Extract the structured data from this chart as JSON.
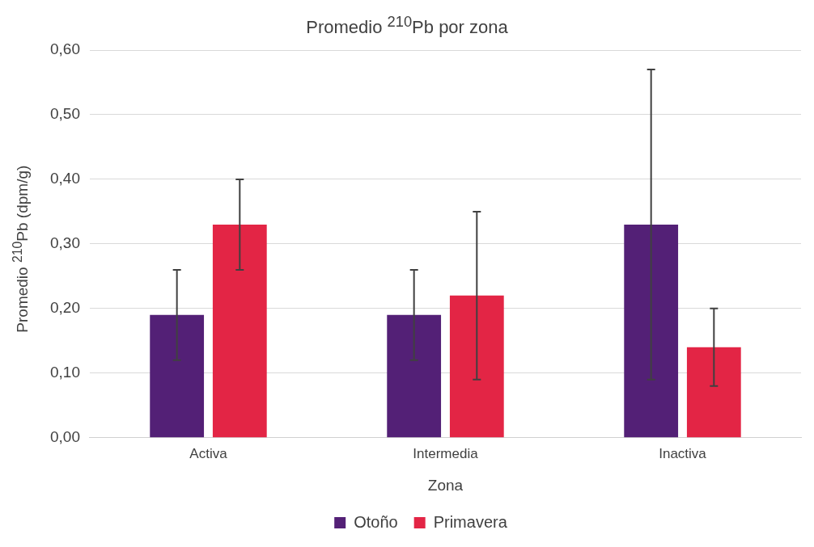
{
  "chart_data": {
    "type": "bar",
    "title": "Promedio $^{210}$Pb   por zona",
    "xlabel": "Zona",
    "ylabel": "Promedio $^{210}$Pb (dpm/g)",
    "categories": [
      "Activa",
      "Intermedia",
      "Inactiva"
    ],
    "series": [
      {
        "name": "Otoño",
        "color": "#532076",
        "values": [
          0.19,
          0.19,
          0.33
        ],
        "errors": [
          [
            0.12,
            0.26
          ],
          [
            0.12,
            0.26
          ],
          [
            0.09,
            0.57
          ]
        ]
      },
      {
        "name": "Primavera",
        "color": "#e32545",
        "values": [
          0.33,
          0.22,
          0.14
        ],
        "errors": [
          [
            0.26,
            0.4
          ],
          [
            0.09,
            0.35
          ],
          [
            0.08,
            0.2
          ]
        ]
      }
    ],
    "ylim": [
      0,
      0.6
    ],
    "yticks": [
      {
        "value": 0,
        "label": "0,00"
      },
      {
        "value": 0.1,
        "label": "0,10"
      },
      {
        "value": 0.2,
        "label": "0,20"
      },
      {
        "value": 0.3,
        "label": "0,30"
      },
      {
        "value": 0.4,
        "label": "0,40"
      },
      {
        "value": 0.5,
        "label": "0,50"
      },
      {
        "value": 0.6,
        "label": "0,60"
      }
    ],
    "grid": "y",
    "legend": "bottom"
  }
}
